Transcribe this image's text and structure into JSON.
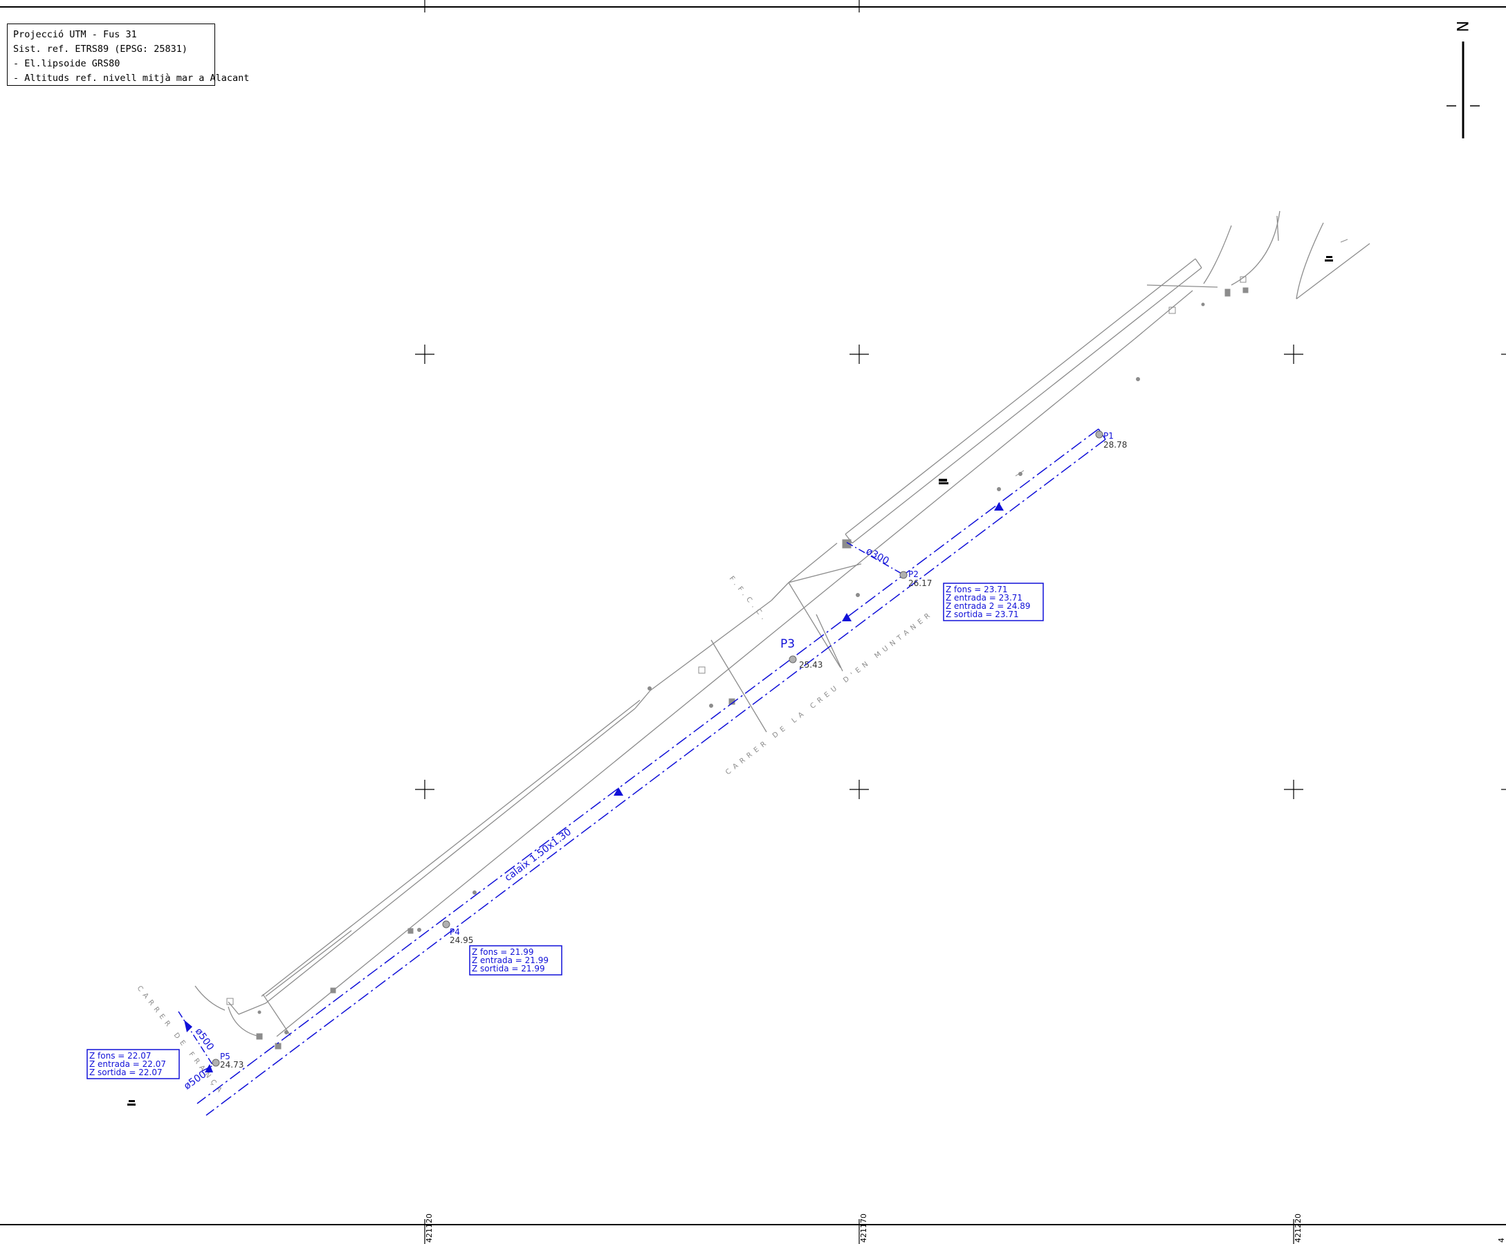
{
  "projection_box": {
    "line1": "Projecció UTM  -  Fus 31",
    "line2": "Sist. ref. ETRS89 (EPSG: 25831)",
    "line3": "- El.lipsoide GRS80",
    "line4": "- Altituds ref. nivell mitjà mar a Alacant"
  },
  "north_label": "N",
  "coords": {
    "x1": "421120",
    "x2": "421170",
    "x3": "421220",
    "x4": "4"
  },
  "streets": {
    "fgc": "F.F.C.C.",
    "creu": "CARRER DE LA CREU D'EN MUNTANER",
    "franca": "CARRER DE FRANÇA"
  },
  "pipe_labels": {
    "calaix": "calaix 1.50x1.30",
    "d300": "ø300",
    "d500a": "ø500",
    "d500b": "ø500"
  },
  "manholes": {
    "p1": {
      "name": "P1",
      "elev": "28.78"
    },
    "p2": {
      "name": "P2",
      "elev": "26.17"
    },
    "p3": {
      "name": "P3",
      "elev": "25.43"
    },
    "p4": {
      "name": "P4",
      "elev": "24.95"
    },
    "p5": {
      "name": "P5",
      "elev": "24.73"
    }
  },
  "boxes": {
    "p2": [
      "Z fons  =  23.71",
      "Z entrada  =  23.71",
      "Z entrada 2  =  24.89",
      "Z sortida  =  23.71"
    ],
    "p4": [
      "Z fons  =  21.99",
      "Z entrada  =  21.99",
      "Z sortida  =  21.99"
    ],
    "p5": [
      "Z fons  =  22.07",
      "Z entrada  =  22.07",
      "Z sortida  =  22.07"
    ]
  },
  "colors": {
    "pipe": "#1010d8",
    "line": "#8c8c8c",
    "frame": "#000000"
  }
}
